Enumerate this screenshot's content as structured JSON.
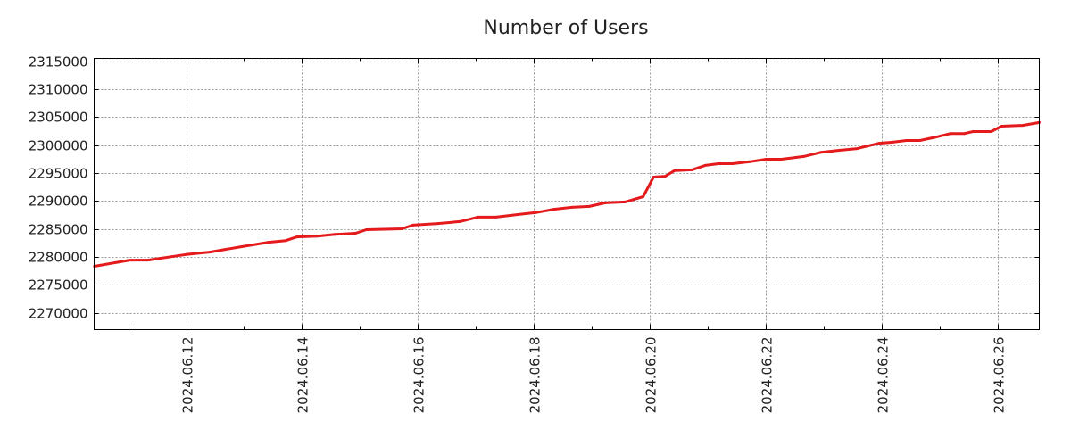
{
  "chart_data": {
    "type": "line",
    "title": "Number of Users",
    "xlabel": "",
    "ylabel": "",
    "x_unit": "day of month, June 2024",
    "xlim": [
      10.415,
      26.71
    ],
    "ylim": [
      2266970,
      2315480
    ],
    "grid": true,
    "legend": "none",
    "x_ticks": [
      {
        "value": 12,
        "label": "2024.06.12"
      },
      {
        "value": 14,
        "label": "2024.06.14"
      },
      {
        "value": 16,
        "label": "2024.06.16"
      },
      {
        "value": 18,
        "label": "2024.06.18"
      },
      {
        "value": 20,
        "label": "2024.06.20"
      },
      {
        "value": 22,
        "label": "2024.06.22"
      },
      {
        "value": 24,
        "label": "2024.06.24"
      },
      {
        "value": 26,
        "label": "2024.06.26"
      }
    ],
    "y_ticks": [
      {
        "value": 2270000,
        "label": "2270000"
      },
      {
        "value": 2275000,
        "label": "2275000"
      },
      {
        "value": 2280000,
        "label": "2280000"
      },
      {
        "value": 2285000,
        "label": "2285000"
      },
      {
        "value": 2290000,
        "label": "2290000"
      },
      {
        "value": 2295000,
        "label": "2295000"
      },
      {
        "value": 2300000,
        "label": "2300000"
      },
      {
        "value": 2305000,
        "label": "2305000"
      },
      {
        "value": 2310000,
        "label": "2310000"
      },
      {
        "value": 2315000,
        "label": "2315000"
      }
    ],
    "series": [
      {
        "name": "Number of Users",
        "color": "#e41a1c",
        "x": [
          10.42,
          11.03,
          11.34,
          12.0,
          12.42,
          12.95,
          13.42,
          13.72,
          13.91,
          14.26,
          14.57,
          14.92,
          15.11,
          15.72,
          15.91,
          16.34,
          16.72,
          17.03,
          17.34,
          17.72,
          18.03,
          18.34,
          18.65,
          18.95,
          19.23,
          19.57,
          19.88,
          20.06,
          20.26,
          20.42,
          20.72,
          20.95,
          21.18,
          21.42,
          21.72,
          22.0,
          22.26,
          22.65,
          22.95,
          23.26,
          23.57,
          23.95,
          24.18,
          24.42,
          24.65,
          24.88,
          25.18,
          25.42,
          25.57,
          25.88,
          26.06,
          26.42,
          26.71
        ],
        "y": [
          2278300,
          2279400,
          2279400,
          2280400,
          2280850,
          2281800,
          2282600,
          2282900,
          2283550,
          2283700,
          2284000,
          2284200,
          2284850,
          2285000,
          2285650,
          2285950,
          2286300,
          2287100,
          2287100,
          2287550,
          2287900,
          2288500,
          2288850,
          2289000,
          2289650,
          2289800,
          2290750,
          2294250,
          2294400,
          2295400,
          2295550,
          2296350,
          2296650,
          2296650,
          2297000,
          2297450,
          2297450,
          2297950,
          2298700,
          2299050,
          2299350,
          2300300,
          2300500,
          2300800,
          2300800,
          2301300,
          2302050,
          2302050,
          2302400,
          2302400,
          2303350,
          2303500,
          2304000
        ]
      }
    ]
  }
}
